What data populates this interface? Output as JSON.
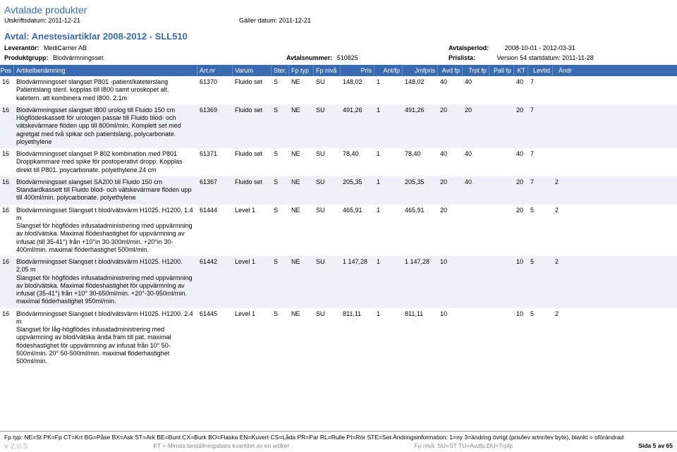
{
  "title": "Avtalade produkter",
  "printDateLabel": "Utskriftsdatum:",
  "printDate": "2011-12-21",
  "validLabel": "Gäller datum:",
  "validDate": "2011-12-21",
  "avtalHeader": "Avtal: Anestesiartiklar 2008-2012 - SLL510",
  "supplierLabel": "Leverantör:",
  "supplier": "MediCarrier AB",
  "periodLabel": "Avtalsperiod:",
  "period": "2008-10-01 - 2012-03-31",
  "groupLabel": "Produktgrupp:",
  "group": "Blodvärmningsset",
  "avtalsnrLabel": "Avtalsnummer:",
  "avtalsnr": "510825",
  "prislistaLabel": "Prislista:",
  "prislista": "Version 54 startdatum: 2011-11-28",
  "columns": {
    "pos": "Pos",
    "desc": "Artikelbenämning",
    "artnr": "Art.nr",
    "varum": "Varum",
    "ster": "Ster.",
    "fptyp": "Fp typ",
    "fpniva": "Fp nivå",
    "pris": "Pris",
    "antfp": "Ant/fp",
    "jmf": "Jmfpris",
    "avdfp": "Avd fp",
    "trpt": "Trpt fp",
    "pall": "Pall fp",
    "kt": "KT",
    "levtid": "Levtid",
    "andr": "Ändr"
  },
  "rows": [
    {
      "pos": "16",
      "desc": "Blodvärmningsset slangset  P801 -patient/kateterslang Patientslang steril. kopplas till I800 samt uroskopet alt. katetern. att kombinera med I800. 2.1m",
      "artnr": "61370",
      "varum": "Fluido set",
      "ster": "S",
      "fptyp": "NE",
      "fpniva": "SU",
      "pris": "148,02",
      "antfp": "1",
      "jmf": "148,02",
      "avdfp": "40",
      "trpt": "40",
      "pall": "",
      "kt": "40",
      "levtid": "7",
      "andr": ""
    },
    {
      "pos": "16",
      "desc": "Blodvärmningsset slangset I800 urolog till Fluido 150 cm Högflödeskassett för urologen passar till Fluido blod- och vätskevärmare flöden upp till 800ml/min. Komplett set med agretgat med två spikar och patientslang..polycarbonate. ployethylene",
      "artnr": "61369",
      "varum": "Fluido set",
      "ster": "S",
      "fptyp": "NE",
      "fpniva": "SU",
      "pris": "491,26",
      "antfp": "1",
      "jmf": "491,26",
      "avdfp": "20",
      "trpt": "20",
      "pall": "",
      "kt": "20",
      "levtid": "7",
      "andr": ""
    },
    {
      "pos": "16",
      "desc": "Blodvärmningsset slangset P 802 kombination med P801 Droppkammare med spike för postoperativt dropp. Kopplas direkt till P801. poycarbonate. polyethylene.24 cm",
      "artnr": "61371",
      "varum": "Fluido set",
      "ster": "S",
      "fptyp": "NE",
      "fpniva": "SU",
      "pris": "78,40",
      "antfp": "1",
      "jmf": "78,40",
      "avdfp": "40",
      "trpt": "40",
      "pall": "",
      "kt": "40",
      "levtid": "7",
      "andr": ""
    },
    {
      "pos": "16",
      "desc": "Blodvärmningsset slangset SA200 till Fluido 150 cm Standardkassett till Fluido blod- och vätskevärmare flöden upp till 400ml/min. polycarbonate. polyethylene",
      "artnr": "61367",
      "varum": "Fluido set",
      "ster": "S",
      "fptyp": "NE",
      "fpniva": "SU",
      "pris": "205,35",
      "antfp": "1",
      "jmf": "205,35",
      "avdfp": "20",
      "trpt": "40",
      "pall": "",
      "kt": "20",
      "levtid": "7",
      "andr": "2"
    },
    {
      "pos": "16",
      "desc": "Blodvärmningsset Slangset t blod/vätsvärm H1025. H1200. 1.4 m\nSlangset för högflödes infusatadministrering med uppvärmning av blod/vätska. Maximal flödeshastighet för uppvärmning av infusat (till 35-41°) från +10°in 30-300ml/min. +20°in 30-400ml/min. maximal flöderhastighet 500ml/min.",
      "artnr": "61444",
      "varum": "Level 1",
      "ster": "S",
      "fptyp": "NE",
      "fpniva": "SU",
      "pris": "465,91",
      "antfp": "1",
      "jmf": "465,91",
      "avdfp": "20",
      "trpt": "",
      "pall": "",
      "kt": "20",
      "levtid": "5",
      "andr": "2"
    },
    {
      "pos": "16",
      "desc": "Blodvärmningsset Slangset t blod/vätsvärm H1025. H1200. 2.05 m\nSlangset för högflödes infusatadministrering med uppvärmning av blod/vätska. Maximal flödeshastighet för uppvärmning av infusat (35-41°) från +10° 30-650ml/min. +20°-30-950ml/min. maximal flöderhastighet 950ml/min.",
      "artnr": "61442",
      "varum": "Level 1",
      "ster": "S",
      "fptyp": "NE",
      "fpniva": "SU",
      "pris": "1 147,28",
      "antfp": "1",
      "jmf": "1 147,28",
      "avdfp": "10",
      "trpt": "",
      "pall": "",
      "kt": "10",
      "levtid": "5",
      "andr": "2"
    },
    {
      "pos": "16",
      "desc": "Blodvärmningsset Slangset t blod/vätsvärm H1025. H1200. 2.4 m\nSlangset för låg-högflödes infusatadministrering med uppvärmning av blod/vätska ända fram till pat. maximal flödeshastighet för uppvärmning av infusat från 10° 50-500ml/min. 20° 50-500ml/min. maximal flöderhastighet 500ml/min.",
      "artnr": "61445",
      "varum": "Level 1",
      "ster": "S",
      "fptyp": "NE",
      "fpniva": "SU",
      "pris": "811,11",
      "antfp": "1",
      "jmf": "811,11",
      "avdfp": "10",
      "trpt": "",
      "pall": "",
      "kt": "10",
      "levtid": "5",
      "andr": "2"
    }
  ],
  "footer": {
    "line1": "Fp typ: NE=St PK=Fp CT=Krt BG=Påse BX=Ask ST=Ark BE=Bunt CX=Burk BO=Flaska EN=Kuvert CS=Låda PR=Par RL=Rulle PI=Rör STE=Set Ändringsinformation: 1=ny 3=ändring övrigt (pris/lev artnr/lev byte), blankt = oförändrad",
    "version": "v 2.0.5",
    "kt": "KT = Minsta beställningsbara kvantitet av en artikel",
    "fpniva": "Fp nivå: SU=ST TU=Avdfp DU=Trpfp",
    "page": "Sida 5 av 65"
  }
}
